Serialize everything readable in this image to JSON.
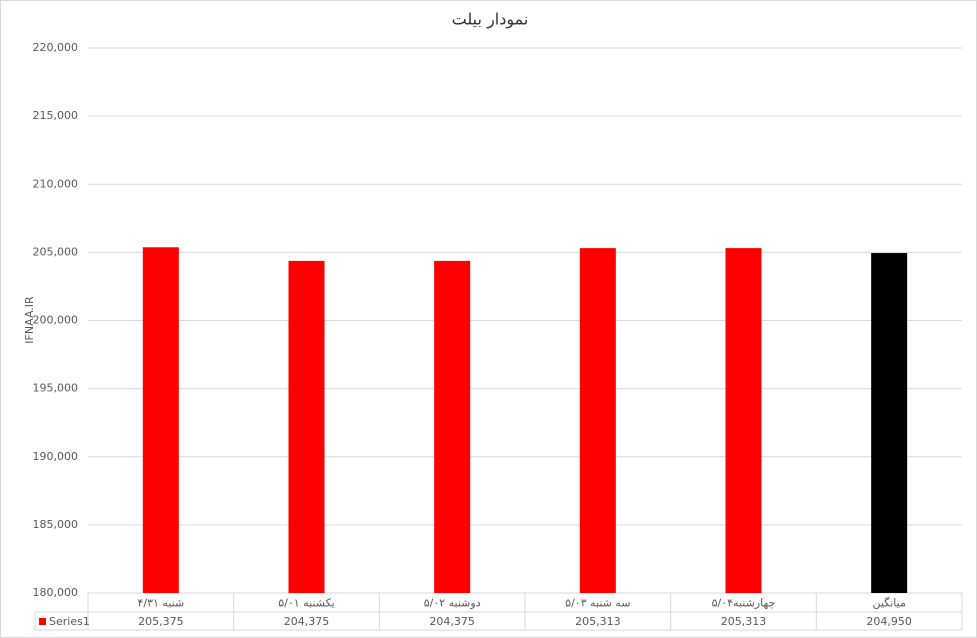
{
  "chart_data": {
    "type": "bar",
    "title": "نمودار بیلت",
    "y_label": "IFNAA.IR",
    "categories": [
      "شنبه ۴/۳۱",
      "یکشنبه ۵/۰۱",
      "دوشنبه ۵/۰۲",
      "سه شنبه ۵/۰۳",
      "چهارشنبه۵/۰۴",
      "میانگین"
    ],
    "series": [
      {
        "name": "Series1",
        "color": "#ff0000",
        "point_colors": [
          "#ff0000",
          "#ff0000",
          "#ff0000",
          "#ff0000",
          "#ff0000",
          "#000000"
        ],
        "values": [
          205375,
          204375,
          204375,
          205313,
          205313,
          204950
        ],
        "value_labels": [
          "205,375",
          "204,375",
          "204,375",
          "205,313",
          "205,313",
          "204,950"
        ]
      }
    ],
    "ylim": [
      180000,
      220000
    ],
    "yticks": [
      {
        "value": 180000,
        "label": "180,000"
      },
      {
        "value": 185000,
        "label": "185,000"
      },
      {
        "value": 190000,
        "label": "190,000"
      },
      {
        "value": 195000,
        "label": "195,000"
      },
      {
        "value": 200000,
        "label": "200,000"
      },
      {
        "value": 205000,
        "label": "205,000"
      },
      {
        "value": 210000,
        "label": "210,000"
      },
      {
        "value": 215000,
        "label": "215,000"
      },
      {
        "value": 220000,
        "label": "220,000"
      }
    ],
    "grid": true
  }
}
